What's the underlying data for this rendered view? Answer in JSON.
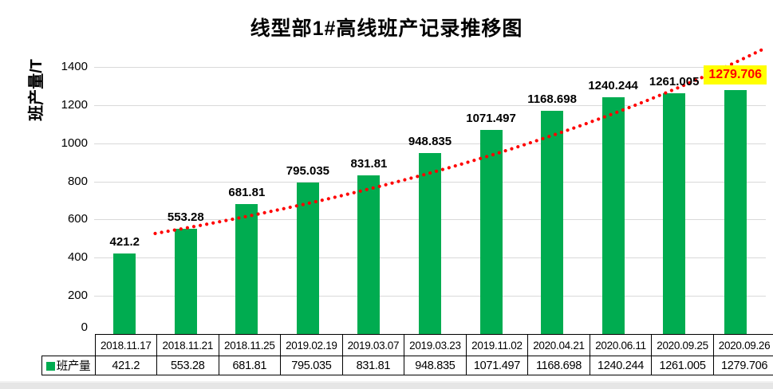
{
  "title": "线型部1#高线班产记录推移图",
  "chart_data": {
    "type": "bar",
    "title": "线型部1#高线班产记录推移图",
    "xlabel": "",
    "ylabel": "班产量/T",
    "categories": [
      "2018.11.17",
      "2018.11.21",
      "2018.11.25",
      "2019.02.19",
      "2019.03.07",
      "2019.03.23",
      "2019.11.02",
      "2020.04.21",
      "2020.06.11",
      "2020.09.25",
      "2020.09.26"
    ],
    "series": [
      {
        "name": "班产量",
        "values": [
          421.2,
          553.28,
          681.81,
          795.035,
          831.81,
          948.835,
          1071.497,
          1168.698,
          1240.244,
          1261.005,
          1279.706
        ]
      }
    ],
    "ylim": [
      0,
      1500
    ],
    "ytick_step": 200,
    "grid": true,
    "legend_position": "data-table-left",
    "data_table_shown": true,
    "bar_color": "#00ac50",
    "label_color": "#000000",
    "gridline_color": "#d9d9d9",
    "highlight": {
      "index": 10,
      "background": "#ffff00",
      "text_color": "#ff0000"
    },
    "trendline": {
      "type": "exponential",
      "style": "dotted",
      "color": "#ff0000",
      "start_value": 527,
      "end_value": 1500
    }
  }
}
